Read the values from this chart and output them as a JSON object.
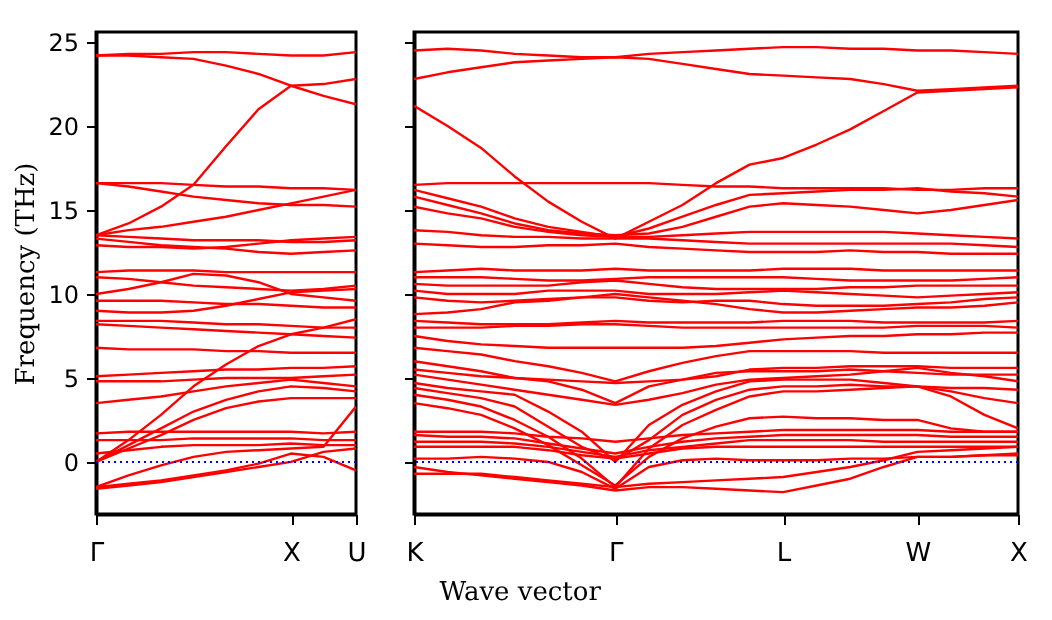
{
  "chart_data": [
    {
      "type": "line",
      "ylabel": "Frequency (THz)",
      "categories": [
        "Γ",
        null,
        null,
        null,
        null,
        null,
        "X",
        null,
        "U"
      ],
      "ylim": [
        -3.1,
        25.6
      ],
      "yticks": [
        0,
        5,
        10,
        15,
        20,
        25
      ],
      "grid": false,
      "legend": false,
      "line_style": "solid",
      "ref_lines": [
        {
          "axis": "y",
          "value": 0,
          "color": "#0000ff",
          "line_style": "dotted"
        }
      ],
      "series": [
        {
          "color": "#ff0000",
          "values": [
            24.2,
            24.3,
            24.3,
            24.4,
            24.4,
            24.3,
            24.2,
            24.2,
            24.4
          ]
        },
        {
          "color": "#ff0000",
          "values": [
            24.2,
            24.2,
            24.1,
            24.0,
            23.6,
            23.1,
            22.4,
            22.5,
            22.8
          ]
        },
        {
          "color": "#ff0000",
          "values": [
            13.5,
            14.2,
            15.2,
            16.5,
            18.8,
            21.0,
            22.4,
            21.8,
            21.3
          ]
        },
        {
          "color": "#ff0000",
          "values": [
            16.6,
            16.6,
            16.6,
            16.5,
            16.4,
            16.4,
            16.3,
            16.3,
            16.2
          ]
        },
        {
          "color": "#ff0000",
          "values": [
            16.6,
            16.4,
            16.1,
            15.8,
            15.6,
            15.4,
            15.3,
            15.3,
            15.2
          ]
        },
        {
          "color": "#ff0000",
          "values": [
            13.5,
            13.8,
            14.0,
            14.3,
            14.6,
            15.0,
            15.4,
            15.8,
            16.2
          ]
        },
        {
          "color": "#ff0000",
          "values": [
            13.5,
            13.4,
            13.3,
            13.2,
            13.2,
            13.2,
            13.1,
            13.1,
            13.2
          ]
        },
        {
          "color": "#ff0000",
          "values": [
            13.3,
            13.1,
            12.9,
            12.8,
            12.7,
            12.5,
            12.4,
            12.5,
            12.6
          ]
        },
        {
          "color": "#ff0000",
          "values": [
            12.9,
            12.8,
            12.8,
            12.7,
            12.8,
            13.0,
            13.2,
            13.3,
            13.4
          ]
        },
        {
          "color": "#ff0000",
          "values": [
            11.3,
            11.4,
            11.4,
            11.4,
            11.3,
            11.3,
            11.3,
            11.3,
            11.3
          ]
        },
        {
          "color": "#ff0000",
          "values": [
            11.0,
            10.9,
            10.7,
            10.5,
            10.4,
            10.3,
            10.2,
            10.3,
            10.5
          ]
        },
        {
          "color": "#ff0000",
          "values": [
            10.0,
            10.3,
            10.7,
            11.2,
            11.1,
            10.7,
            10.0,
            9.8,
            9.6
          ]
        },
        {
          "color": "#ff0000",
          "values": [
            9.6,
            9.6,
            9.6,
            9.5,
            9.4,
            9.4,
            9.3,
            9.2,
            9.2
          ]
        },
        {
          "color": "#ff0000",
          "values": [
            9.0,
            8.9,
            8.9,
            9.0,
            9.3,
            9.7,
            10.1,
            10.2,
            10.3
          ]
        },
        {
          "color": "#ff0000",
          "values": [
            8.4,
            8.4,
            8.4,
            8.3,
            8.2,
            8.2,
            8.1,
            8.0,
            8.0
          ]
        },
        {
          "color": "#ff0000",
          "values": [
            8.2,
            8.1,
            8.0,
            7.9,
            7.8,
            7.7,
            7.6,
            7.5,
            7.4
          ]
        },
        {
          "color": "#ff0000",
          "values": [
            6.8,
            6.7,
            6.7,
            6.7,
            6.6,
            6.6,
            6.5,
            6.5,
            6.5
          ]
        },
        {
          "color": "#ff0000",
          "values": [
            5.1,
            5.2,
            5.3,
            5.4,
            5.5,
            5.5,
            5.6,
            5.6,
            5.7
          ]
        },
        {
          "color": "#ff0000",
          "values": [
            4.8,
            4.8,
            4.8,
            4.9,
            5.0,
            5.0,
            5.0,
            5.1,
            5.2
          ]
        },
        {
          "color": "#ff0000",
          "values": [
            3.5,
            3.7,
            3.9,
            4.2,
            4.5,
            4.7,
            4.9,
            4.7,
            4.5
          ]
        },
        {
          "color": "#ff0000",
          "values": [
            0,
            1.3,
            2.8,
            4.5,
            5.8,
            6.9,
            7.6,
            8.0,
            8.5
          ]
        },
        {
          "color": "#ff0000",
          "values": [
            0,
            1.0,
            2.0,
            3.0,
            3.7,
            4.2,
            4.5,
            4.4,
            4.2
          ]
        },
        {
          "color": "#ff0000",
          "values": [
            0,
            0.8,
            1.6,
            2.5,
            3.2,
            3.6,
            3.8,
            3.8,
            3.8
          ]
        },
        {
          "color": "#ff0000",
          "values": [
            1.7,
            1.8,
            1.8,
            1.8,
            1.8,
            1.8,
            1.8,
            1.7,
            1.8
          ]
        },
        {
          "color": "#ff0000",
          "values": [
            1.3,
            1.3,
            1.3,
            1.4,
            1.4,
            1.4,
            1.4,
            1.3,
            1.3
          ]
        },
        {
          "color": "#ff0000",
          "values": [
            0.5,
            0.7,
            0.9,
            1.0,
            1.0,
            1.0,
            1.1,
            1.0,
            1.0
          ]
        },
        {
          "color": "#ff0000",
          "values": [
            -1.5,
            -0.8,
            -0.2,
            0.3,
            0.6,
            0.7,
            0.8,
            0.9,
            3.3
          ]
        },
        {
          "color": "#ff0000",
          "values": [
            -1.5,
            -1.3,
            -1.1,
            -0.8,
            -0.5,
            -0.1,
            0.5,
            0.3,
            -0.5
          ]
        },
        {
          "color": "#ff0000",
          "values": [
            -1.6,
            -1.4,
            -1.2,
            -0.9,
            -0.6,
            -0.3,
            0.0,
            0.6,
            0.8
          ]
        }
      ]
    },
    {
      "type": "line",
      "xlabel": "Wave vector",
      "categories": [
        "K",
        null,
        null,
        null,
        null,
        null,
        "Γ",
        null,
        null,
        null,
        null,
        "L",
        null,
        null,
        null,
        "W",
        null,
        null,
        "X"
      ],
      "ylim": [
        -3.1,
        25.6
      ],
      "yticks": [
        0,
        5,
        10,
        15,
        20,
        25
      ],
      "tick_labels": "x",
      "grid": false,
      "legend": false,
      "line_style": "solid",
      "ref_lines": [
        {
          "axis": "y",
          "value": 0,
          "color": "#0000ff",
          "line_style": "dotted"
        }
      ],
      "series": [
        {
          "color": "#ff0000",
          "values": [
            24.5,
            24.6,
            24.5,
            24.3,
            24.2,
            24.1,
            24.1,
            24.3,
            24.4,
            24.5,
            24.6,
            24.7,
            24.7,
            24.6,
            24.6,
            24.5,
            24.5,
            24.4,
            24.3
          ]
        },
        {
          "color": "#ff0000",
          "values": [
            22.8,
            23.2,
            23.5,
            23.8,
            23.9,
            24.0,
            24.1,
            24.0,
            23.7,
            23.4,
            23.1,
            23.0,
            22.9,
            22.8,
            22.5,
            22.1,
            22.2,
            22.3,
            22.4
          ]
        },
        {
          "color": "#ff0000",
          "values": [
            21.2,
            20.0,
            18.7,
            17.0,
            15.5,
            14.3,
            13.3,
            14.3,
            15.3,
            16.6,
            17.7,
            18.1,
            18.9,
            19.8,
            20.9,
            22.0,
            22.1,
            22.2,
            22.3
          ]
        },
        {
          "color": "#ff0000",
          "values": [
            16.5,
            16.6,
            16.6,
            16.6,
            16.6,
            16.6,
            16.6,
            16.6,
            16.5,
            16.4,
            16.4,
            16.3,
            16.3,
            16.3,
            16.3,
            16.2,
            16.2,
            16.3,
            16.3
          ]
        },
        {
          "color": "#ff0000",
          "values": [
            16.2,
            15.7,
            15.2,
            14.5,
            14.0,
            13.7,
            13.4,
            13.9,
            14.6,
            15.3,
            15.9,
            16.0,
            16.1,
            16.2,
            16.2,
            16.3,
            16.1,
            16.0,
            15.8
          ]
        },
        {
          "color": "#ff0000",
          "values": [
            15.8,
            15.3,
            14.8,
            14.2,
            13.8,
            13.6,
            13.5,
            13.6,
            14.0,
            14.6,
            15.2,
            15.4,
            15.3,
            15.2,
            15.0,
            14.8,
            15.0,
            15.3,
            15.6
          ]
        },
        {
          "color": "#ff0000",
          "values": [
            15.2,
            14.8,
            14.5,
            14.0,
            13.7,
            13.5,
            13.4,
            13.4,
            13.5,
            13.6,
            13.7,
            13.7,
            13.7,
            13.7,
            13.7,
            13.6,
            13.5,
            13.4,
            13.3
          ]
        },
        {
          "color": "#ff0000",
          "values": [
            13.8,
            13.7,
            13.5,
            13.4,
            13.4,
            13.3,
            13.3,
            13.3,
            13.2,
            13.1,
            13.0,
            13.0,
            13.0,
            13.0,
            13.0,
            13.0,
            13.0,
            12.9,
            12.8
          ]
        },
        {
          "color": "#ff0000",
          "values": [
            13.0,
            12.9,
            12.8,
            12.8,
            12.9,
            12.9,
            13.0,
            12.8,
            12.7,
            12.6,
            12.5,
            12.5,
            12.5,
            12.6,
            12.5,
            12.5,
            12.4,
            12.4,
            12.4
          ]
        },
        {
          "color": "#ff0000",
          "values": [
            11.3,
            11.4,
            11.5,
            11.4,
            11.4,
            11.4,
            11.5,
            11.4,
            11.4,
            11.4,
            11.4,
            11.5,
            11.5,
            11.5,
            11.4,
            11.4,
            11.4,
            11.4,
            11.4
          ]
        },
        {
          "color": "#ff0000",
          "values": [
            11.0,
            11.0,
            11.0,
            10.9,
            10.8,
            10.8,
            10.9,
            11.0,
            11.0,
            11.0,
            11.0,
            11.0,
            10.9,
            10.8,
            10.8,
            10.8,
            10.8,
            10.9,
            11.0
          ]
        },
        {
          "color": "#ff0000",
          "values": [
            10.6,
            10.5,
            10.5,
            10.5,
            10.5,
            10.7,
            10.8,
            10.6,
            10.4,
            10.3,
            10.3,
            10.3,
            10.3,
            10.4,
            10.4,
            10.5,
            10.5,
            10.5,
            10.5
          ]
        },
        {
          "color": "#ff0000",
          "values": [
            10.2,
            10.0,
            10.0,
            10.0,
            10.2,
            10.2,
            10.2,
            10.0,
            10.0,
            10.0,
            10.1,
            10.2,
            10.1,
            10.0,
            9.9,
            9.8,
            9.9,
            10.0,
            10.1
          ]
        },
        {
          "color": "#ff0000",
          "values": [
            9.8,
            9.6,
            9.5,
            9.6,
            9.7,
            9.8,
            9.8,
            9.6,
            9.5,
            9.6,
            9.6,
            9.4,
            9.3,
            9.3,
            9.3,
            9.4,
            9.5,
            9.7,
            9.8
          ]
        },
        {
          "color": "#ff0000",
          "values": [
            8.8,
            8.9,
            9.1,
            9.5,
            9.6,
            9.8,
            10.0,
            9.8,
            9.6,
            9.4,
            9.1,
            8.9,
            8.9,
            9.0,
            9.1,
            9.2,
            9.2,
            9.3,
            9.5
          ]
        },
        {
          "color": "#ff0000",
          "values": [
            8.4,
            8.3,
            8.2,
            8.2,
            8.2,
            8.3,
            8.4,
            8.3,
            8.3,
            8.3,
            8.3,
            8.4,
            8.4,
            8.4,
            8.3,
            8.3,
            8.3,
            8.3,
            8.4
          ]
        },
        {
          "color": "#ff0000",
          "values": [
            8.0,
            8.0,
            8.0,
            8.1,
            8.1,
            8.2,
            8.2,
            8.1,
            8.0,
            8.0,
            8.0,
            8.0,
            8.0,
            8.0,
            8.0,
            8.1,
            8.1,
            8.1,
            8.0
          ]
        },
        {
          "color": "#ff0000",
          "values": [
            7.5,
            7.2,
            7.0,
            6.9,
            6.8,
            6.8,
            6.8,
            6.8,
            6.8,
            6.9,
            7.1,
            7.3,
            7.4,
            7.5,
            7.5,
            7.6,
            7.6,
            7.7,
            7.7
          ]
        },
        {
          "color": "#ff0000",
          "values": [
            6.8,
            6.6,
            6.4,
            6.0,
            5.7,
            5.3,
            4.8,
            5.4,
            5.9,
            6.3,
            6.6,
            6.6,
            6.6,
            6.6,
            6.5,
            6.5,
            6.5,
            6.5,
            6.5
          ]
        },
        {
          "color": "#ff0000",
          "values": [
            6.0,
            5.7,
            5.4,
            5.0,
            4.9,
            4.8,
            4.7,
            4.8,
            4.9,
            5.1,
            5.5,
            5.6,
            5.6,
            5.7,
            5.7,
            5.7,
            5.6,
            5.6,
            5.6
          ]
        },
        {
          "color": "#ff0000",
          "values": [
            5.5,
            5.3,
            5.1,
            5.0,
            4.8,
            4.3,
            3.5,
            4.5,
            4.9,
            5.3,
            5.4,
            5.4,
            5.4,
            5.5,
            5.4,
            5.3,
            5.2,
            5.2,
            5.2
          ]
        },
        {
          "color": "#ff0000",
          "values": [
            5.2,
            4.9,
            4.6,
            4.3,
            4.0,
            3.7,
            3.4,
            3.7,
            4.1,
            4.6,
            4.9,
            5.0,
            5.1,
            5.2,
            5.4,
            5.6,
            5.3,
            5.1,
            4.8
          ]
        },
        {
          "color": "#ff0000",
          "values": [
            4.7,
            4.4,
            4.2,
            4.0,
            3.0,
            1.8,
            0.0,
            2.2,
            3.4,
            4.2,
            4.8,
            4.9,
            4.9,
            4.9,
            4.7,
            4.5,
            4.4,
            4.4,
            4.3
          ]
        },
        {
          "color": "#ff0000",
          "values": [
            4.4,
            4.1,
            3.8,
            3.3,
            2.1,
            0.9,
            0.1,
            1.3,
            2.8,
            3.7,
            4.3,
            4.5,
            4.5,
            4.6,
            4.5,
            4.5,
            4.2,
            3.8,
            3.5
          ]
        },
        {
          "color": "#ff0000",
          "values": [
            4.0,
            3.7,
            3.3,
            2.5,
            1.5,
            0.2,
            -1.5,
            0.8,
            2.2,
            3.1,
            3.9,
            4.2,
            4.2,
            4.3,
            4.4,
            4.5,
            3.9,
            2.8,
            2.0
          ]
        },
        {
          "color": "#ff0000",
          "values": [
            3.5,
            3.2,
            2.8,
            2.0,
            1.0,
            -0.2,
            -1.4,
            0.3,
            1.4,
            2.1,
            2.6,
            2.7,
            2.6,
            2.6,
            2.5,
            2.5,
            2.0,
            1.8,
            1.8
          ]
        },
        {
          "color": "#ff0000",
          "values": [
            1.8,
            1.8,
            1.8,
            1.7,
            1.5,
            1.4,
            1.2,
            1.4,
            1.6,
            1.7,
            1.8,
            1.9,
            1.9,
            1.9,
            1.9,
            1.9,
            1.8,
            1.8,
            1.8
          ]
        },
        {
          "color": "#ff0000",
          "values": [
            1.6,
            1.5,
            1.5,
            1.4,
            1.1,
            0.8,
            0.5,
            0.9,
            1.2,
            1.4,
            1.5,
            1.6,
            1.6,
            1.6,
            1.6,
            1.6,
            1.5,
            1.5,
            1.5
          ]
        },
        {
          "color": "#ff0000",
          "values": [
            1.2,
            1.2,
            1.2,
            1.1,
            0.9,
            0.6,
            0.3,
            0.7,
            0.9,
            1.1,
            1.3,
            1.3,
            1.3,
            1.3,
            1.2,
            1.2,
            1.2,
            1.2,
            1.2
          ]
        },
        {
          "color": "#ff0000",
          "values": [
            0.9,
            0.9,
            0.9,
            0.9,
            0.7,
            0.4,
            0.2,
            0.5,
            0.8,
            0.9,
            0.9,
            0.9,
            0.9,
            0.9,
            0.9,
            0.9,
            0.9,
            0.9,
            0.9
          ]
        },
        {
          "color": "#ff0000",
          "values": [
            0.2,
            0.2,
            0.3,
            0.2,
            0.0,
            -0.6,
            -1.6,
            -0.3,
            0.1,
            0.2,
            0.1,
            0.1,
            0.1,
            0.2,
            0.2,
            0.3,
            0.3,
            0.4,
            0.5
          ]
        },
        {
          "color": "#ff0000",
          "values": [
            -0.7,
            -0.7,
            -0.7,
            -0.9,
            -1.1,
            -1.3,
            -1.5,
            -1.3,
            -1.2,
            -1.1,
            -1.0,
            -0.9,
            -0.6,
            -0.3,
            0.1,
            0.6,
            0.7,
            0.8,
            0.9
          ]
        },
        {
          "color": "#ff0000",
          "values": [
            -0.3,
            -0.6,
            -0.8,
            -1.0,
            -1.2,
            -1.4,
            -1.7,
            -1.5,
            -1.5,
            -1.6,
            -1.7,
            -1.8,
            -1.4,
            -1.0,
            -0.3,
            0.3,
            0.3,
            0.4,
            0.4
          ]
        }
      ]
    }
  ]
}
